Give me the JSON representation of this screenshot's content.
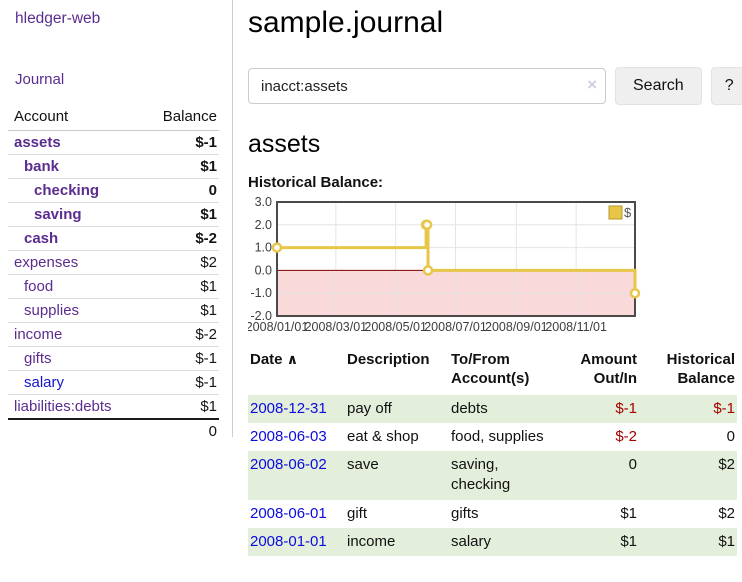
{
  "app": {
    "brand": "hledger-web"
  },
  "sidebar": {
    "journal_link": "Journal",
    "accounts_table": {
      "headers": [
        "Account",
        "Balance"
      ],
      "rows": [
        {
          "name": "assets",
          "balance": "$-1",
          "indent": 1,
          "bold": true,
          "name_color": "purple",
          "balance_color": "dark-red"
        },
        {
          "name": "bank",
          "balance": "$1",
          "indent": 2,
          "bold": true,
          "name_color": "purple",
          "balance_color": "black"
        },
        {
          "name": "checking",
          "balance": "0",
          "indent": 3,
          "bold": true,
          "name_color": "purple",
          "balance_color": "black"
        },
        {
          "name": "saving",
          "balance": "$1",
          "indent": 3,
          "bold": true,
          "name_color": "purple",
          "balance_color": "black"
        },
        {
          "name": "cash",
          "balance": "$-2",
          "indent": 2,
          "bold": true,
          "name_color": "purple",
          "balance_color": "dark-red"
        },
        {
          "name": "expenses",
          "balance": "$2",
          "indent": 1,
          "bold": false,
          "name_color": "purple",
          "balance_color": "black"
        },
        {
          "name": "food",
          "balance": "$1",
          "indent": 2,
          "bold": false,
          "name_color": "purple",
          "balance_color": "black"
        },
        {
          "name": "supplies",
          "balance": "$1",
          "indent": 2,
          "bold": false,
          "name_color": "purple",
          "balance_color": "black"
        },
        {
          "name": "income",
          "balance": "$-2",
          "indent": 1,
          "bold": false,
          "name_color": "purple",
          "balance_color": "rose"
        },
        {
          "name": "gifts",
          "balance": "$-1",
          "indent": 2,
          "bold": false,
          "name_color": "purple",
          "balance_color": "rose"
        },
        {
          "name": "salary",
          "balance": "$-1",
          "indent": 2,
          "bold": false,
          "name_color": "blue",
          "balance_color": "rose"
        },
        {
          "name": "liabilities:debts",
          "balance": "$1",
          "indent": 1,
          "bold": false,
          "name_color": "purple",
          "balance_color": "black"
        }
      ],
      "total": "0"
    }
  },
  "main": {
    "title": "sample.journal",
    "search": {
      "value": "inacct:assets",
      "clear_icon": "×",
      "search_button": "Search",
      "help_button": "?"
    },
    "account_heading": "assets",
    "section_label": "Historical Balance:",
    "register_table": {
      "headers": [
        "Date",
        "Description",
        "To/From Account(s)",
        "Amount Out/In",
        "Historical Balance"
      ],
      "sort_icon": "∧",
      "rows": [
        {
          "date": "2008-12-31",
          "description": "pay off",
          "accounts": "debts",
          "amount": "$-1",
          "balance": "$-1"
        },
        {
          "date": "2008-06-03",
          "description": "eat & shop",
          "accounts": "food, supplies",
          "amount": "$-2",
          "balance": "0"
        },
        {
          "date": "2008-06-02",
          "description": "save",
          "accounts": "saving, checking",
          "amount": "0",
          "balance": "$2"
        },
        {
          "date": "2008-06-01",
          "description": "gift",
          "accounts": "gifts",
          "amount": "$1",
          "balance": "$2"
        },
        {
          "date": "2008-01-01",
          "description": "income",
          "accounts": "salary",
          "amount": "$1",
          "balance": "$1"
        }
      ]
    }
  },
  "chart_data": {
    "type": "line",
    "step": true,
    "title": "Historical Balance:",
    "series": [
      {
        "name": "$",
        "points": [
          [
            "2008-01-01",
            1
          ],
          [
            "2008-06-01",
            2
          ],
          [
            "2008-06-02",
            2
          ],
          [
            "2008-06-03",
            0
          ],
          [
            "2008-12-31",
            -1
          ]
        ]
      }
    ],
    "xlim": [
      "2008-01-01",
      "2008-12-31"
    ],
    "ylim": [
      -2,
      3
    ],
    "yticks": [
      "3.0",
      "2.0",
      "1.0",
      "0.0",
      "-1.0",
      "-2.0"
    ],
    "xticks": [
      "2008/01/01",
      "2008/03/01",
      "2008/05/01",
      "2008/07/01",
      "2008/09/01",
      "2008/11/01"
    ],
    "grid": true,
    "legend": {
      "position": "top-right",
      "label": "$"
    },
    "colors": {
      "line": "#e7c64a",
      "marker_fill": "#ffffff",
      "negative_region": "#f9d9d9",
      "zero_line": "#7e0000",
      "border": "#4a4a4a",
      "grid": "#e4e4e4"
    }
  },
  "colors": {
    "link_purple": "#5b2d90",
    "link_blue": "#0b0bdd",
    "negative_strong": "#a40000",
    "negative_soft": "#c47878",
    "stripe_green": "#e3efdb"
  }
}
